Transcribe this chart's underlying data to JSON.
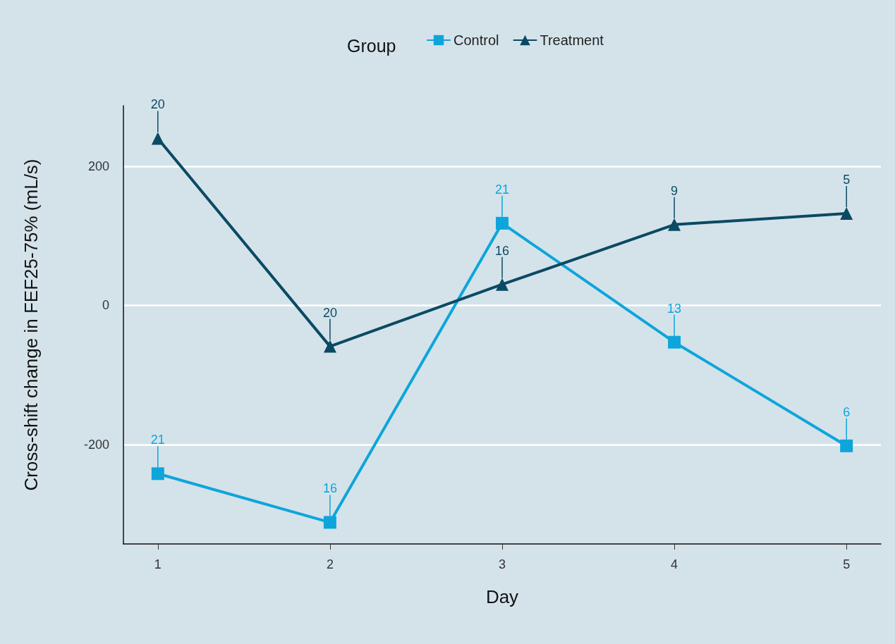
{
  "chart_data": {
    "type": "line",
    "xlabel": "Day",
    "ylabel": "Cross-shift change in FEF25-75% (mL/s)",
    "legend_title": "Group",
    "legend": "top",
    "x": [
      1,
      2,
      3,
      4,
      5
    ],
    "xlim": [
      0.8,
      5.2
    ],
    "xticks": [
      1,
      2,
      3,
      4,
      5
    ],
    "ylim": [
      -343,
      287
    ],
    "yticks": [
      -200,
      0,
      200
    ],
    "grid": "y",
    "series": [
      {
        "name": "Control",
        "color": "#0ea5db",
        "marker": "square",
        "values": [
          -242,
          -312,
          118,
          -53,
          -202
        ]
      },
      {
        "name": "Treatment",
        "color": "#0b4a63",
        "marker": "triangle",
        "values": [
          240,
          -59,
          30,
          116,
          132
        ]
      }
    ],
    "annotations": [
      {
        "text": "21",
        "x": 1,
        "y": -242
      },
      {
        "text": "16",
        "x": 2,
        "y": -312
      },
      {
        "text": "21",
        "x": 3,
        "y": 118
      },
      {
        "text": "13",
        "x": 4,
        "y": -53
      },
      {
        "text": "6",
        "x": 5,
        "y": -202
      },
      {
        "text": "20",
        "x": 1,
        "y": 240
      },
      {
        "text": "20",
        "x": 2,
        "y": -59
      },
      {
        "text": "16",
        "x": 3,
        "y": 30
      },
      {
        "text": "9",
        "x": 4,
        "y": 116
      },
      {
        "text": "5",
        "x": 5,
        "y": 132
      }
    ]
  }
}
